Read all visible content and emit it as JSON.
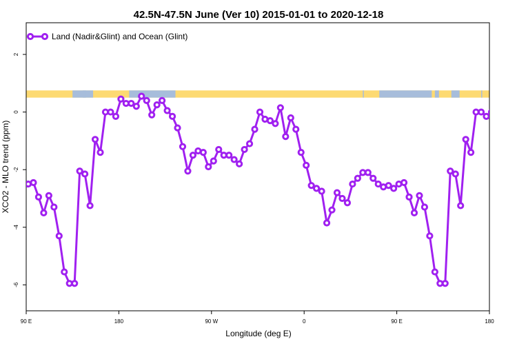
{
  "chart_data": {
    "type": "line",
    "title": "42.5N-47.5N June (Ver 10)   2015-01-01 to 2020-12-18",
    "xlabel": "Longitude (deg E)",
    "ylabel": "XCO2 - MLO trend (ppm)",
    "xlim": [
      90,
      540
    ],
    "ylim": [
      -6.9,
      3.1
    ],
    "x_ticks": [
      {
        "value": 90,
        "label": "90 E"
      },
      {
        "value": 180,
        "label": "180"
      },
      {
        "value": 270,
        "label": "90 W"
      },
      {
        "value": 360,
        "label": "0"
      },
      {
        "value": 450,
        "label": "90 E"
      },
      {
        "value": 540,
        "label": "180"
      }
    ],
    "y_ticks": [
      {
        "value": 2,
        "label": "2"
      },
      {
        "value": 0,
        "label": "0"
      },
      {
        "value": -2,
        "label": "-2"
      },
      {
        "value": -4,
        "label": "-4"
      },
      {
        "value": -6,
        "label": "-6"
      }
    ],
    "legend": {
      "position": "top-left",
      "entries": [
        "Land (Nadir&Glint) and Ocean (Glint)"
      ]
    },
    "land_sea_band": {
      "y_range": [
        0.5,
        0.75
      ],
      "land_color": "#fdda72",
      "ocean_color": "#a7bddb",
      "ocean_segments": [
        [
          135,
          147
        ],
        [
          145,
          148
        ],
        [
          147,
          155
        ],
        [
          190,
          235
        ],
        [
          417,
          418
        ],
        [
          433,
          484
        ],
        [
          487,
          491
        ],
        [
          503,
          511
        ],
        [
          532,
          533
        ]
      ]
    },
    "series": [
      {
        "name": "Land (Nadir&Glint) and Ocean (Glint)",
        "color": "#a020f0",
        "x": [
          92,
          97,
          102,
          107,
          112,
          117,
          122,
          127,
          132,
          137,
          142,
          147,
          152,
          157,
          162,
          167,
          172,
          177,
          182,
          187,
          192,
          197,
          202,
          207,
          212,
          217,
          222,
          227,
          232,
          237,
          242,
          247,
          252,
          257,
          262,
          267,
          272,
          277,
          282,
          287,
          292,
          297,
          302,
          307,
          312,
          317,
          322,
          327,
          332,
          337,
          342,
          347,
          352,
          357,
          362,
          367,
          372,
          377,
          382,
          387,
          392,
          397,
          402,
          407,
          412,
          417,
          422,
          427,
          432,
          437,
          442,
          447,
          452,
          457,
          462,
          467,
          472,
          477,
          482,
          487,
          492,
          497,
          502,
          507,
          512,
          517,
          522,
          527,
          532,
          537,
          542
        ],
        "y": [
          -2.5,
          -2.45,
          -2.95,
          -3.5,
          -2.9,
          -3.3,
          -4.3,
          -5.55,
          -5.95,
          -5.95,
          -2.05,
          -2.15,
          -3.25,
          -0.95,
          -1.4,
          0.0,
          0.0,
          -0.15,
          0.45,
          0.3,
          0.3,
          0.2,
          0.55,
          0.4,
          -0.1,
          0.25,
          0.4,
          0.05,
          -0.15,
          -0.55,
          -1.2,
          -2.05,
          -1.5,
          -1.35,
          -1.4,
          -1.9,
          -1.7,
          -1.3,
          -1.5,
          -1.5,
          -1.65,
          -1.8,
          -1.3,
          -1.1,
          -0.6,
          0.0,
          -0.25,
          -0.3,
          -0.4,
          0.15,
          -0.85,
          -0.2,
          -0.6,
          -1.4,
          -1.85,
          -2.55,
          -2.65,
          -2.75,
          -3.85,
          -3.4,
          -2.8,
          -3.0,
          -3.15,
          -2.5,
          -2.3,
          -2.1,
          -2.1,
          -2.3,
          -2.5,
          -2.6,
          -2.55,
          -2.65,
          -2.5,
          -2.45,
          -2.95,
          -3.5,
          -2.9,
          -3.3,
          -4.3,
          -5.55,
          -5.95,
          -5.95,
          -2.05,
          -2.15,
          -3.25,
          -0.95,
          -1.4,
          0.0,
          0.0,
          -0.15,
          0.0
        ]
      }
    ]
  }
}
